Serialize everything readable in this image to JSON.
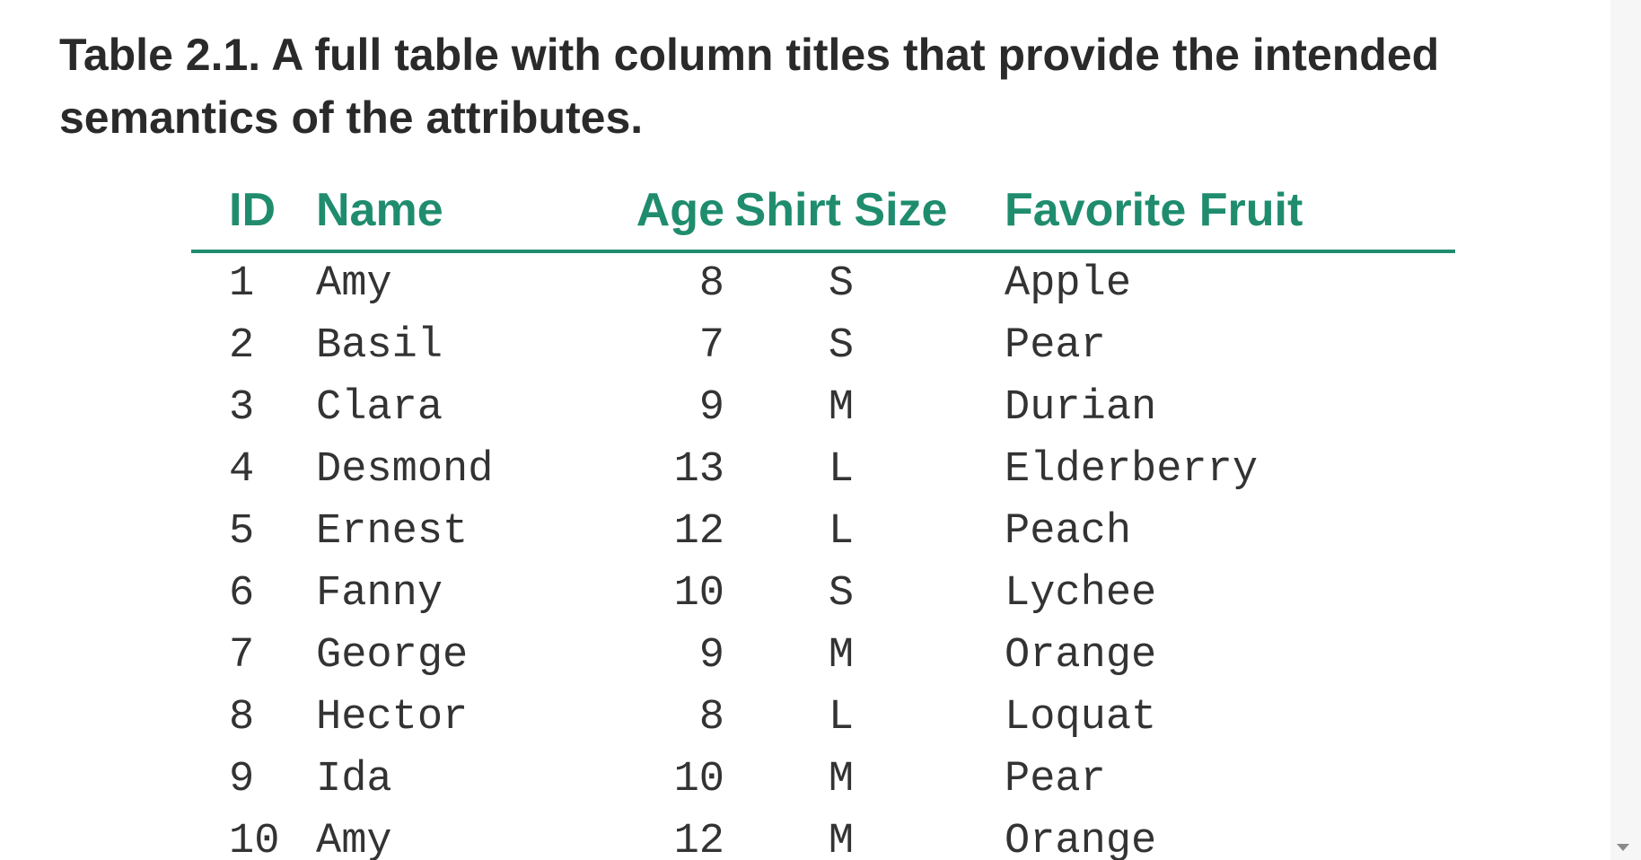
{
  "caption": "Table 2.1. A full table with column titles that provide the intended semantics of the attributes.",
  "colors": {
    "header": "#1f8c6e",
    "caption": "#2a2a2a",
    "cell_text": "#333333"
  },
  "table": {
    "headers": [
      "ID",
      "Name",
      "Age",
      "Shirt Size",
      "Favorite Fruit"
    ],
    "rows": [
      [
        "1",
        "Amy",
        "8",
        "S",
        "Apple"
      ],
      [
        "2",
        "Basil",
        "7",
        "S",
        "Pear"
      ],
      [
        "3",
        "Clara",
        "9",
        "M",
        "Durian"
      ],
      [
        "4",
        "Desmond",
        "13",
        "L",
        "Elderberry"
      ],
      [
        "5",
        "Ernest",
        "12",
        "L",
        "Peach"
      ],
      [
        "6",
        "Fanny",
        "10",
        "S",
        "Lychee"
      ],
      [
        "7",
        "George",
        "9",
        "M",
        "Orange"
      ],
      [
        "8",
        "Hector",
        "8",
        "L",
        "Loquat"
      ],
      [
        "9",
        "Ida",
        "10",
        "M",
        "Pear"
      ],
      [
        "10",
        "Amy",
        "12",
        "M",
        "Orange"
      ]
    ]
  }
}
